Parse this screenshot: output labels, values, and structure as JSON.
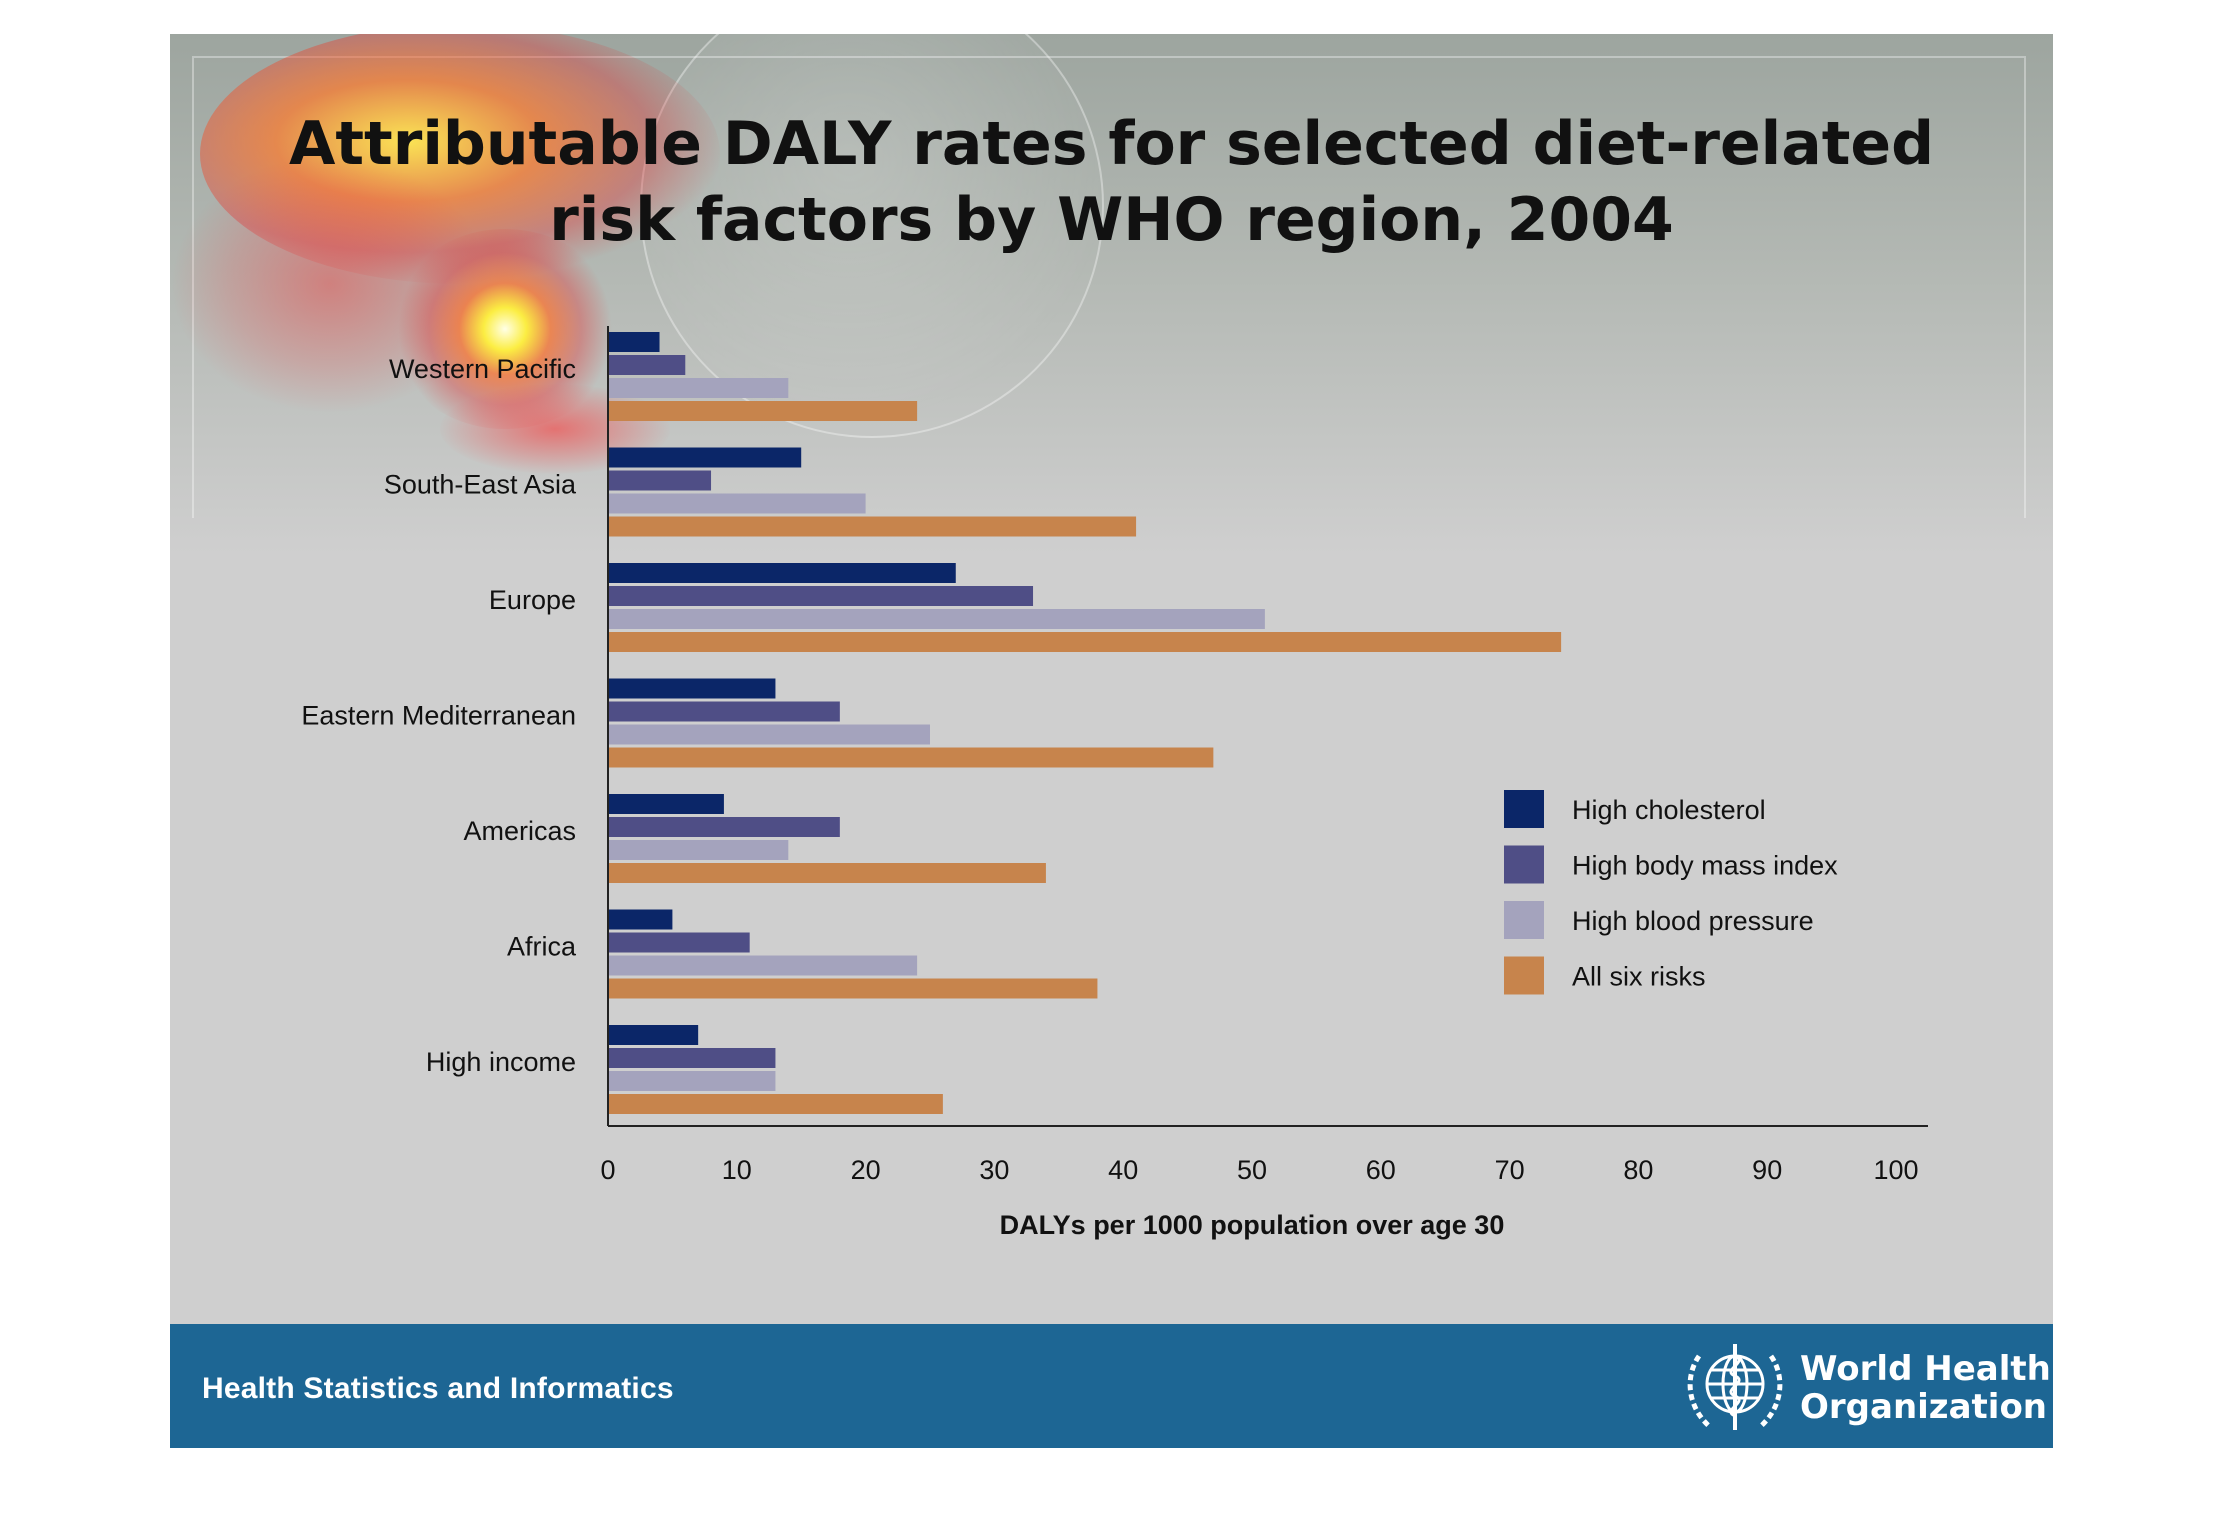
{
  "title": {
    "line1": "Attributable DALY rates for selected diet-related",
    "line2": "risk factors by WHO region, 2004"
  },
  "colors": {
    "high_cholesterol": "#0b2668",
    "high_bmi": "#4f4e86",
    "high_bp": "#a4a3bd",
    "all_six": "#c7844c",
    "footer": "#1d6694"
  },
  "chart_data": {
    "type": "bar",
    "orientation": "horizontal",
    "categories": [
      "Western Pacific",
      "South-East Asia",
      "Europe",
      "Eastern Mediterranean",
      "Americas",
      "Africa",
      "High income"
    ],
    "series": [
      {
        "name": "High cholesterol",
        "values": [
          4,
          15,
          27,
          13,
          9,
          5,
          7
        ]
      },
      {
        "name": "High body mass index",
        "values": [
          6,
          8,
          33,
          18,
          18,
          11,
          13
        ]
      },
      {
        "name": "High blood pressure",
        "values": [
          14,
          20,
          51,
          25,
          14,
          24,
          13
        ]
      },
      {
        "name": "All six risks",
        "values": [
          24,
          41,
          74,
          47,
          34,
          38,
          26
        ]
      }
    ],
    "xlabel": "DALYs per 1000 population over age 30",
    "ylabel": "",
    "xlim": [
      0,
      100
    ],
    "xticks": [
      0,
      10,
      20,
      30,
      40,
      50,
      60,
      70,
      80,
      90,
      100
    ],
    "legend": "right",
    "grid": false
  },
  "footer": {
    "text": "Health Statistics and Informatics",
    "org_line1": "World Health",
    "org_line2": "Organization"
  },
  "icons": {
    "logo": "who-emblem-icon"
  }
}
